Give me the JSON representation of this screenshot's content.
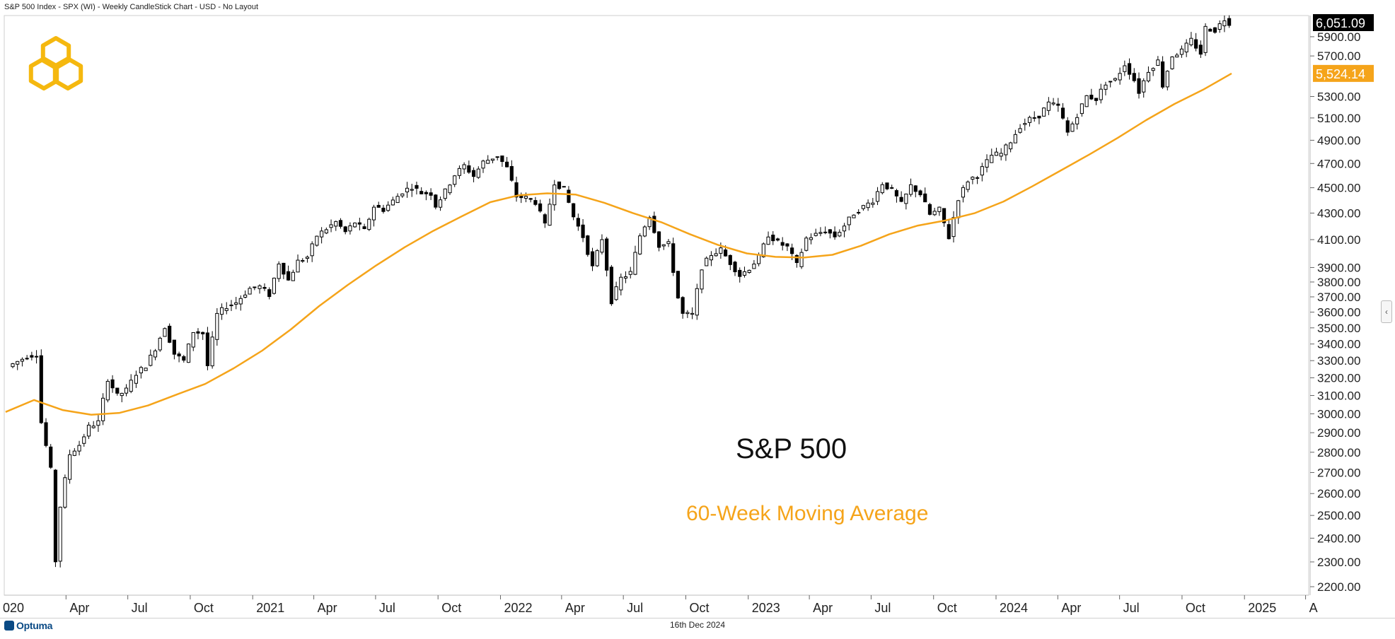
{
  "header": {
    "title": "S&P 500 Index - SPX (WI) - Weekly CandleStick Chart - USD - No Layout"
  },
  "footer": {
    "date": "16th Dec 2024",
    "brand": "Optuma"
  },
  "annotations": {
    "title": "S&P 500",
    "ma_label": "60-Week Moving Average"
  },
  "colors": {
    "candle": "#000000",
    "ma_line": "#f5a41a",
    "last_price_bg": "#000000",
    "ma_price_bg": "#f5a41a",
    "logo": "#f5b80f"
  },
  "icons": {
    "logo": "hexagon-logo-icon",
    "side_handle": "chevron-left-icon"
  },
  "chart_data": {
    "type": "candlestick",
    "x_axis": {
      "labels": [
        "020",
        "Apr",
        "Jul",
        "Oct",
        "2021",
        "Apr",
        "Jul",
        "Oct",
        "2022",
        "Apr",
        "Jul",
        "Oct",
        "2023",
        "Apr",
        "Jul",
        "Oct",
        "2024",
        "Apr",
        "Jul",
        "Oct",
        "2025",
        "A"
      ],
      "dates": [
        "2020-01-01",
        "2020-04-01",
        "2020-07-01",
        "2020-10-01",
        "2021-01-01",
        "2021-04-01",
        "2021-07-01",
        "2021-10-01",
        "2022-01-01",
        "2022-04-01",
        "2022-07-01",
        "2022-10-01",
        "2023-01-01",
        "2023-04-01",
        "2023-07-01",
        "2023-10-01",
        "2024-01-01",
        "2024-04-01",
        "2024-07-01",
        "2024-10-01",
        "2025-01-01",
        "2025-04-01"
      ]
    },
    "y_axis": {
      "scale": "log",
      "ylim": [
        2150,
        6200
      ],
      "ticks": [
        "2200.00",
        "2300.00",
        "2400.00",
        "2500.00",
        "2600.00",
        "2700.00",
        "2800.00",
        "2900.00",
        "3000.00",
        "3100.00",
        "3200.00",
        "3300.00",
        "3400.00",
        "3500.00",
        "3600.00",
        "3700.00",
        "3800.00",
        "3900.00",
        "4100.00",
        "4300.00",
        "4500.00",
        "4700.00",
        "4900.00",
        "5100.00",
        "5300.00",
        "5700.00",
        "5900.00"
      ]
    },
    "last_price": {
      "value": "6,051.09"
    },
    "ma_price": {
      "value": "5,524.14"
    },
    "series": [
      {
        "name": "S&P 500",
        "kind": "weekly close (approx.)",
        "points": [
          [
            "2020-01-10",
            3265
          ],
          [
            "2020-01-24",
            3295
          ],
          [
            "2020-02-07",
            3327
          ],
          [
            "2020-02-21",
            3337
          ],
          [
            "2020-02-28",
            2954
          ],
          [
            "2020-03-13",
            2711
          ],
          [
            "2020-03-20",
            2305
          ],
          [
            "2020-03-27",
            2541
          ],
          [
            "2020-04-10",
            2790
          ],
          [
            "2020-04-24",
            2837
          ],
          [
            "2020-05-08",
            2930
          ],
          [
            "2020-05-22",
            2955
          ],
          [
            "2020-06-05",
            3194
          ],
          [
            "2020-06-19",
            3098
          ],
          [
            "2020-07-02",
            3130
          ],
          [
            "2020-07-17",
            3225
          ],
          [
            "2020-07-31",
            3271
          ],
          [
            "2020-08-14",
            3373
          ],
          [
            "2020-08-28",
            3508
          ],
          [
            "2020-09-11",
            3341
          ],
          [
            "2020-09-25",
            3298
          ],
          [
            "2020-10-09",
            3477
          ],
          [
            "2020-10-23",
            3465
          ],
          [
            "2020-10-30",
            3270
          ],
          [
            "2020-11-13",
            3585
          ],
          [
            "2020-11-27",
            3638
          ],
          [
            "2020-12-11",
            3663
          ],
          [
            "2020-12-31",
            3756
          ],
          [
            "2021-01-15",
            3768
          ],
          [
            "2021-01-29",
            3714
          ],
          [
            "2021-02-12",
            3934
          ],
          [
            "2021-02-26",
            3811
          ],
          [
            "2021-03-12",
            3943
          ],
          [
            "2021-03-26",
            3974
          ],
          [
            "2021-04-09",
            4129
          ],
          [
            "2021-04-23",
            4180
          ],
          [
            "2021-05-07",
            4232
          ],
          [
            "2021-05-21",
            4156
          ],
          [
            "2021-06-04",
            4229
          ],
          [
            "2021-06-18",
            4166
          ],
          [
            "2021-07-02",
            4352
          ],
          [
            "2021-07-16",
            4327
          ],
          [
            "2021-07-30",
            4395
          ],
          [
            "2021-08-13",
            4468
          ],
          [
            "2021-08-27",
            4509
          ],
          [
            "2021-09-10",
            4459
          ],
          [
            "2021-09-24",
            4455
          ],
          [
            "2021-10-01",
            4357
          ],
          [
            "2021-10-15",
            4471
          ],
          [
            "2021-10-29",
            4605
          ],
          [
            "2021-11-12",
            4682
          ],
          [
            "2021-11-26",
            4595
          ],
          [
            "2021-12-10",
            4712
          ],
          [
            "2021-12-31",
            4766
          ],
          [
            "2022-01-14",
            4662
          ],
          [
            "2022-01-28",
            4431
          ],
          [
            "2022-02-11",
            4418
          ],
          [
            "2022-02-25",
            4385
          ],
          [
            "2022-03-11",
            4204
          ],
          [
            "2022-03-25",
            4543
          ],
          [
            "2022-04-08",
            4488
          ],
          [
            "2022-04-22",
            4272
          ],
          [
            "2022-05-06",
            4123
          ],
          [
            "2022-05-20",
            3901
          ],
          [
            "2022-06-03",
            4108
          ],
          [
            "2022-06-17",
            3675
          ],
          [
            "2022-07-01",
            3825
          ],
          [
            "2022-07-15",
            3863
          ],
          [
            "2022-07-29",
            4130
          ],
          [
            "2022-08-12",
            4280
          ],
          [
            "2022-08-26",
            4058
          ],
          [
            "2022-09-09",
            4067
          ],
          [
            "2022-09-23",
            3693
          ],
          [
            "2022-09-30",
            3586
          ],
          [
            "2022-10-14",
            3583
          ],
          [
            "2022-10-28",
            3901
          ],
          [
            "2022-11-11",
            3993
          ],
          [
            "2022-11-25",
            4026
          ],
          [
            "2022-12-09",
            3934
          ],
          [
            "2022-12-23",
            3845
          ],
          [
            "2023-01-06",
            3895
          ],
          [
            "2023-01-20",
            3972
          ],
          [
            "2023-02-03",
            4136
          ],
          [
            "2023-02-17",
            4079
          ],
          [
            "2023-03-03",
            4045
          ],
          [
            "2023-03-17",
            3917
          ],
          [
            "2023-03-31",
            4109
          ],
          [
            "2023-04-14",
            4137
          ],
          [
            "2023-04-28",
            4169
          ],
          [
            "2023-05-12",
            4124
          ],
          [
            "2023-05-26",
            4205
          ],
          [
            "2023-06-09",
            4298
          ],
          [
            "2023-06-23",
            4348
          ],
          [
            "2023-07-07",
            4398
          ],
          [
            "2023-07-21",
            4536
          ],
          [
            "2023-08-04",
            4478
          ],
          [
            "2023-08-18",
            4369
          ],
          [
            "2023-09-01",
            4515
          ],
          [
            "2023-09-15",
            4450
          ],
          [
            "2023-09-29",
            4288
          ],
          [
            "2023-10-13",
            4327
          ],
          [
            "2023-10-27",
            4117
          ],
          [
            "2023-11-10",
            4415
          ],
          [
            "2023-11-24",
            4559
          ],
          [
            "2023-12-08",
            4604
          ],
          [
            "2023-12-29",
            4770
          ],
          [
            "2024-01-12",
            4783
          ],
          [
            "2024-01-26",
            4891
          ],
          [
            "2024-02-09",
            5026
          ],
          [
            "2024-02-23",
            5088
          ],
          [
            "2024-03-08",
            5124
          ],
          [
            "2024-03-22",
            5234
          ],
          [
            "2024-04-05",
            5204
          ],
          [
            "2024-04-19",
            4967
          ],
          [
            "2024-05-03",
            5128
          ],
          [
            "2024-05-17",
            5303
          ],
          [
            "2024-05-31",
            5277
          ],
          [
            "2024-06-14",
            5431
          ],
          [
            "2024-06-28",
            5460
          ],
          [
            "2024-07-12",
            5615
          ],
          [
            "2024-07-26",
            5459
          ],
          [
            "2024-08-02",
            5346
          ],
          [
            "2024-08-16",
            5554
          ],
          [
            "2024-08-30",
            5648
          ],
          [
            "2024-09-06",
            5408
          ],
          [
            "2024-09-20",
            5702
          ],
          [
            "2024-10-04",
            5751
          ],
          [
            "2024-10-18",
            5864
          ],
          [
            "2024-11-01",
            5728
          ],
          [
            "2024-11-08",
            5995
          ],
          [
            "2024-11-22",
            5969
          ],
          [
            "2024-12-06",
            6090
          ],
          [
            "2024-12-13",
            6051
          ]
        ]
      },
      {
        "name": "60-Week Moving Average",
        "points": [
          [
            "2020-01-03",
            3010
          ],
          [
            "2020-02-14",
            3075
          ],
          [
            "2020-03-27",
            3020
          ],
          [
            "2020-05-08",
            2995
          ],
          [
            "2020-06-19",
            3005
          ],
          [
            "2020-07-31",
            3045
          ],
          [
            "2020-09-11",
            3105
          ],
          [
            "2020-10-23",
            3165
          ],
          [
            "2020-12-04",
            3255
          ],
          [
            "2021-01-15",
            3360
          ],
          [
            "2021-02-26",
            3490
          ],
          [
            "2021-04-09",
            3640
          ],
          [
            "2021-05-21",
            3780
          ],
          [
            "2021-07-02",
            3915
          ],
          [
            "2021-08-13",
            4045
          ],
          [
            "2021-09-24",
            4165
          ],
          [
            "2021-11-05",
            4275
          ],
          [
            "2021-12-17",
            4385
          ],
          [
            "2022-01-28",
            4440
          ],
          [
            "2022-03-11",
            4455
          ],
          [
            "2022-04-22",
            4445
          ],
          [
            "2022-06-03",
            4380
          ],
          [
            "2022-07-15",
            4300
          ],
          [
            "2022-08-26",
            4230
          ],
          [
            "2022-10-07",
            4140
          ],
          [
            "2022-11-18",
            4060
          ],
          [
            "2022-12-30",
            4000
          ],
          [
            "2023-02-10",
            3975
          ],
          [
            "2023-03-24",
            3970
          ],
          [
            "2023-05-05",
            3990
          ],
          [
            "2023-06-16",
            4055
          ],
          [
            "2023-07-28",
            4140
          ],
          [
            "2023-09-08",
            4205
          ],
          [
            "2023-10-20",
            4245
          ],
          [
            "2023-12-01",
            4300
          ],
          [
            "2024-01-12",
            4390
          ],
          [
            "2024-02-23",
            4510
          ],
          [
            "2024-04-05",
            4640
          ],
          [
            "2024-05-17",
            4775
          ],
          [
            "2024-06-28",
            4920
          ],
          [
            "2024-08-09",
            5080
          ],
          [
            "2024-09-20",
            5230
          ],
          [
            "2024-11-01",
            5365
          ],
          [
            "2024-12-13",
            5524
          ]
        ]
      }
    ]
  }
}
